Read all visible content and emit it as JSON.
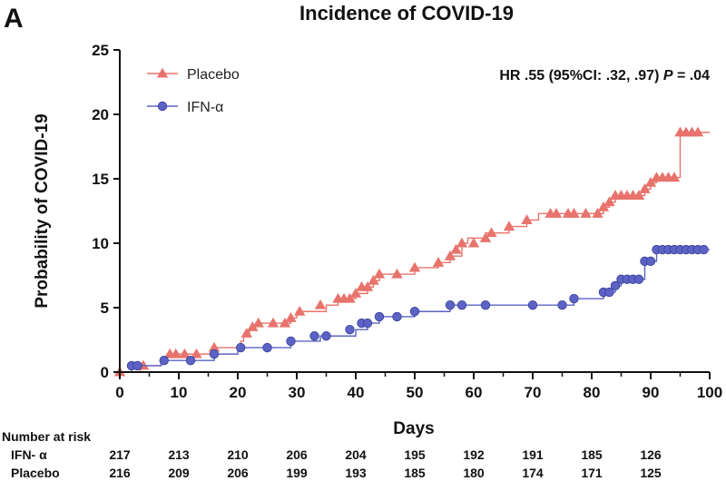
{
  "panel_letter": "A",
  "chart_data": {
    "type": "line",
    "subtype": "kaplan-meier-cumulative-incidence",
    "title": "Incidence of  COVID-19",
    "xlabel": "Days",
    "ylabel": "Probability of COVID-19",
    "xlim": [
      0,
      100
    ],
    "ylim": [
      0,
      25
    ],
    "x_ticks": [
      0,
      10,
      20,
      30,
      40,
      50,
      60,
      70,
      80,
      90,
      100
    ],
    "y_ticks": [
      0,
      5,
      10,
      15,
      20,
      25
    ],
    "grid": false,
    "legend_position": "top-left",
    "annotation": {
      "pre": "HR .55 (95%CI: .32, .97) ",
      "p": "P",
      "post": " = .04"
    },
    "series": [
      {
        "name": "Placebo",
        "color": "#e8736c",
        "marker": "triangle",
        "steps": [
          [
            0,
            0
          ],
          [
            3.5,
            0.5
          ],
          [
            7,
            1.0
          ],
          [
            8,
            1.4
          ],
          [
            16,
            1.9
          ],
          [
            20.5,
            2.4
          ],
          [
            21,
            2.8
          ],
          [
            22,
            3.3
          ],
          [
            23,
            3.8
          ],
          [
            29,
            4.2
          ],
          [
            30,
            4.7
          ],
          [
            35,
            5.2
          ],
          [
            37,
            5.7
          ],
          [
            40,
            6.1
          ],
          [
            42,
            6.6
          ],
          [
            43,
            7.1
          ],
          [
            44,
            7.6
          ],
          [
            50,
            8.1
          ],
          [
            54,
            8.5
          ],
          [
            56,
            9.0
          ],
          [
            58,
            10.0
          ],
          [
            59,
            10.4
          ],
          [
            62,
            10.8
          ],
          [
            66,
            11.3
          ],
          [
            69,
            11.8
          ],
          [
            71,
            12.3
          ],
          [
            82,
            12.8
          ],
          [
            83,
            13.2
          ],
          [
            84,
            13.7
          ],
          [
            89,
            14.2
          ],
          [
            90,
            14.7
          ],
          [
            91,
            15.1
          ],
          [
            95,
            18.6
          ],
          [
            100,
            18.6
          ]
        ],
        "censor_marks": [
          [
            0,
            0
          ],
          [
            4,
            0.5
          ],
          [
            8.5,
            1.4
          ],
          [
            9.5,
            1.4
          ],
          [
            11,
            1.4
          ],
          [
            13,
            1.4
          ],
          [
            16,
            1.9
          ],
          [
            21.5,
            3.0
          ],
          [
            22.5,
            3.5
          ],
          [
            23.5,
            3.8
          ],
          [
            26,
            3.8
          ],
          [
            28,
            3.8
          ],
          [
            29,
            4.2
          ],
          [
            30.5,
            4.7
          ],
          [
            34,
            5.2
          ],
          [
            37,
            5.7
          ],
          [
            38,
            5.7
          ],
          [
            39,
            5.7
          ],
          [
            40,
            6.1
          ],
          [
            41,
            6.6
          ],
          [
            42,
            6.6
          ],
          [
            43,
            7.1
          ],
          [
            44,
            7.6
          ],
          [
            47,
            7.6
          ],
          [
            50,
            8.1
          ],
          [
            54,
            8.5
          ],
          [
            56,
            9.0
          ],
          [
            57,
            9.5
          ],
          [
            58,
            10.0
          ],
          [
            60,
            10.0
          ],
          [
            62,
            10.4
          ],
          [
            63,
            10.8
          ],
          [
            66,
            11.3
          ],
          [
            69,
            11.8
          ],
          [
            73,
            12.3
          ],
          [
            74,
            12.3
          ],
          [
            76,
            12.3
          ],
          [
            77,
            12.3
          ],
          [
            79,
            12.3
          ],
          [
            81,
            12.3
          ],
          [
            82,
            12.8
          ],
          [
            83,
            13.2
          ],
          [
            84,
            13.7
          ],
          [
            85,
            13.7
          ],
          [
            86,
            13.7
          ],
          [
            87,
            13.7
          ],
          [
            88,
            13.7
          ],
          [
            89,
            14.2
          ],
          [
            90,
            14.7
          ],
          [
            91,
            15.1
          ],
          [
            92,
            15.1
          ],
          [
            93,
            15.1
          ],
          [
            94,
            15.1
          ],
          [
            95,
            18.6
          ],
          [
            96,
            18.6
          ],
          [
            97,
            18.6
          ],
          [
            98,
            18.6
          ]
        ]
      },
      {
        "name": "IFN-α",
        "color": "#5c63c4",
        "marker": "circle",
        "steps": [
          [
            0,
            0
          ],
          [
            2,
            0.5
          ],
          [
            7,
            0.9
          ],
          [
            16,
            1.4
          ],
          [
            20,
            1.9
          ],
          [
            29,
            2.4
          ],
          [
            34,
            2.8
          ],
          [
            40,
            3.3
          ],
          [
            42,
            3.8
          ],
          [
            44,
            4.3
          ],
          [
            50,
            4.7
          ],
          [
            56,
            5.2
          ],
          [
            77,
            5.7
          ],
          [
            82,
            6.2
          ],
          [
            84,
            6.7
          ],
          [
            85,
            7.2
          ],
          [
            89,
            8.6
          ],
          [
            91,
            9.5
          ],
          [
            100,
            9.5
          ]
        ],
        "censor_marks": [
          [
            2,
            0.5
          ],
          [
            3,
            0.5
          ],
          [
            7.5,
            0.9
          ],
          [
            12,
            0.9
          ],
          [
            16,
            1.4
          ],
          [
            20.5,
            1.9
          ],
          [
            25,
            1.9
          ],
          [
            29,
            2.4
          ],
          [
            33,
            2.8
          ],
          [
            35,
            2.8
          ],
          [
            39,
            3.3
          ],
          [
            41,
            3.8
          ],
          [
            42,
            3.8
          ],
          [
            44,
            4.3
          ],
          [
            47,
            4.3
          ],
          [
            50,
            4.7
          ],
          [
            56,
            5.2
          ],
          [
            58,
            5.2
          ],
          [
            62,
            5.2
          ],
          [
            70,
            5.2
          ],
          [
            75,
            5.2
          ],
          [
            77,
            5.7
          ],
          [
            82,
            6.2
          ],
          [
            83,
            6.2
          ],
          [
            84,
            6.7
          ],
          [
            85,
            7.2
          ],
          [
            86,
            7.2
          ],
          [
            87,
            7.2
          ],
          [
            88,
            7.2
          ],
          [
            89,
            8.6
          ],
          [
            90,
            8.6
          ],
          [
            91,
            9.5
          ],
          [
            92,
            9.5
          ],
          [
            93,
            9.5
          ],
          [
            94,
            9.5
          ],
          [
            95,
            9.5
          ],
          [
            96,
            9.5
          ],
          [
            97,
            9.5
          ],
          [
            98,
            9.5
          ],
          [
            99,
            9.5
          ]
        ]
      }
    ]
  },
  "risk_table": {
    "header": "Number at risk",
    "times": [
      0,
      10,
      20,
      30,
      40,
      50,
      60,
      70,
      80,
      90
    ],
    "rows": [
      {
        "label": "IFN- α",
        "values": [
          "217",
          "213",
          "210",
          "206",
          "204",
          "195",
          "192",
          "191",
          "185",
          "126"
        ]
      },
      {
        "label": "Placebo",
        "values": [
          "216",
          "209",
          "206",
          "199",
          "193",
          "185",
          "180",
          "174",
          "171",
          "125"
        ]
      }
    ]
  }
}
